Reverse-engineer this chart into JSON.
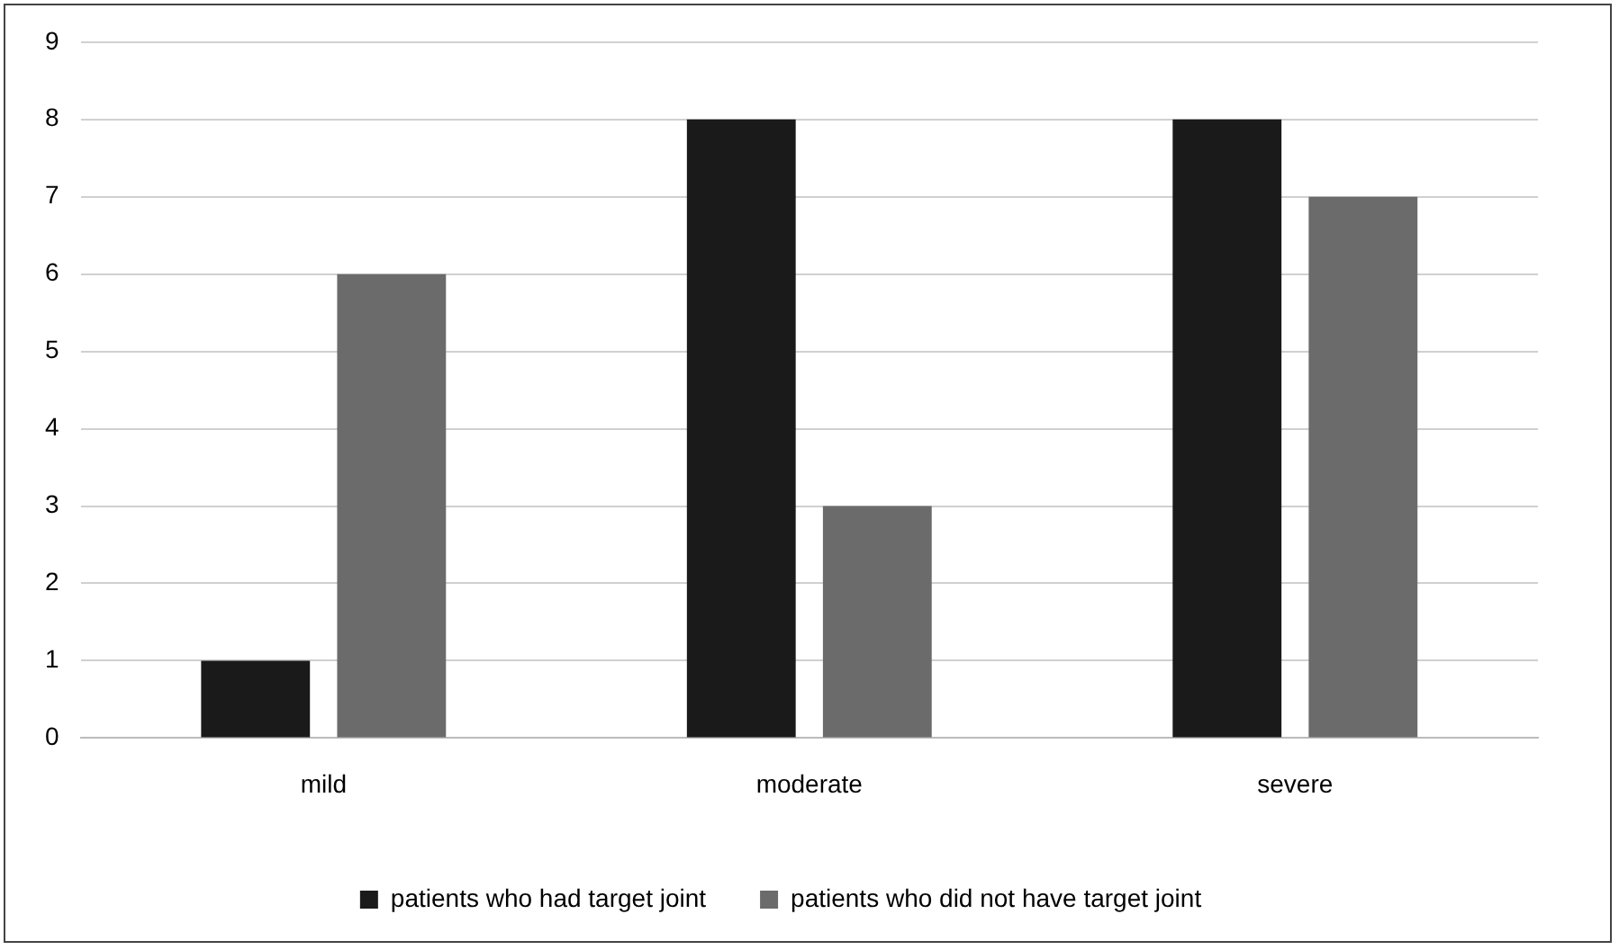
{
  "chart_data": {
    "type": "bar",
    "categories": [
      "mild",
      "moderate",
      "severe"
    ],
    "series": [
      {
        "name": "patients who had target joint",
        "color": "#1a1a1a",
        "values": [
          1,
          8,
          8
        ]
      },
      {
        "name": "patients who did not have target joint",
        "color": "#6b6b6b",
        "values": [
          6,
          3,
          7
        ]
      }
    ],
    "ylim": [
      0,
      9
    ],
    "yticks": [
      0,
      1,
      2,
      3,
      4,
      5,
      6,
      7,
      8,
      9
    ],
    "grid": "y",
    "legend": "bottom"
  }
}
